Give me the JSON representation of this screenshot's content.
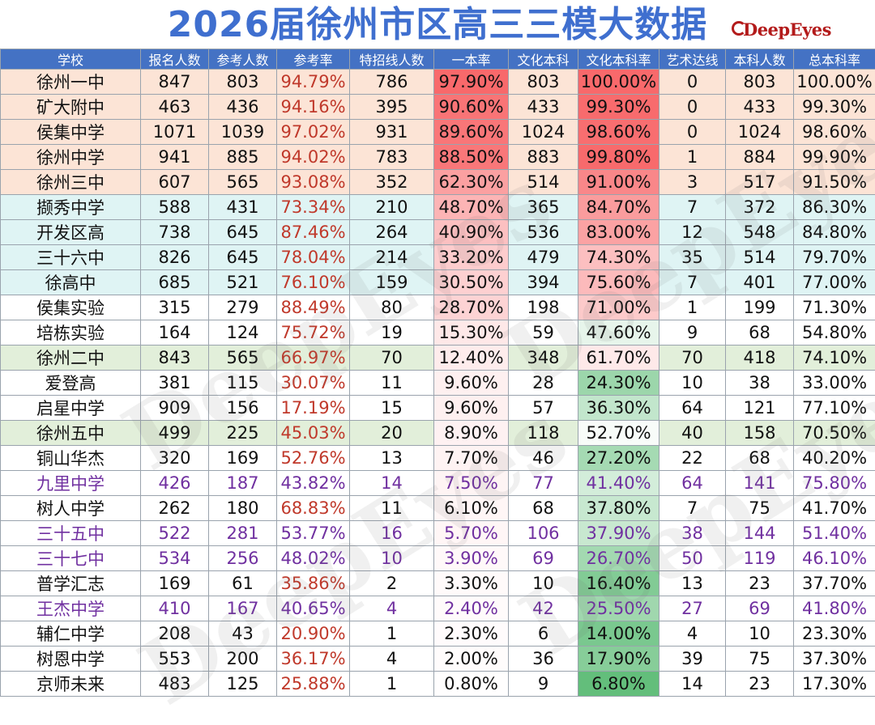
{
  "title": "2026届徐州市区高三三模大数据",
  "brand": "DeepEyes",
  "watermark": "DeepEyes",
  "colors": {
    "header_bg": "#4472c4",
    "group_1": "#fce4d6",
    "group_2": "#dff4f4",
    "group_3": "#e2efda",
    "rate_text": "#c0392b",
    "purple_text": "#7030a0",
    "red_scale": "#f8696b",
    "green_scale": "#63be7b"
  },
  "table": {
    "headers": [
      "学校",
      "报名人数",
      "参考人数",
      "参考率",
      "特招线人数",
      "一本率",
      "文化本科",
      "文化本科率",
      "艺术达线",
      "本科人数",
      "总本科率"
    ],
    "rows": [
      {
        "name": "徐州一中",
        "cells": [
          "847",
          "803",
          "94.79%",
          "786",
          "97.90%",
          "803",
          "100.00%",
          "0",
          "803",
          "100.00%"
        ],
        "group": 1,
        "purple": false
      },
      {
        "name": "矿大附中",
        "cells": [
          "463",
          "436",
          "94.16%",
          "395",
          "90.60%",
          "433",
          "99.30%",
          "0",
          "433",
          "99.30%"
        ],
        "group": 1,
        "purple": false
      },
      {
        "name": "侯集中学",
        "cells": [
          "1071",
          "1039",
          "97.02%",
          "931",
          "89.60%",
          "1024",
          "98.60%",
          "0",
          "1024",
          "98.60%"
        ],
        "group": 1,
        "purple": false
      },
      {
        "name": "徐州中学",
        "cells": [
          "941",
          "885",
          "94.02%",
          "783",
          "88.50%",
          "883",
          "99.80%",
          "1",
          "884",
          "99.90%"
        ],
        "group": 1,
        "purple": false
      },
      {
        "name": "徐州三中",
        "cells": [
          "607",
          "565",
          "93.08%",
          "352",
          "62.30%",
          "514",
          "91.00%",
          "3",
          "517",
          "91.50%"
        ],
        "group": 1,
        "purple": false
      },
      {
        "name": "撷秀中学",
        "cells": [
          "588",
          "431",
          "73.34%",
          "210",
          "48.70%",
          "365",
          "84.70%",
          "7",
          "372",
          "86.30%"
        ],
        "group": 2,
        "purple": false
      },
      {
        "name": "开发区高",
        "cells": [
          "738",
          "645",
          "87.46%",
          "264",
          "40.90%",
          "536",
          "83.00%",
          "12",
          "548",
          "84.80%"
        ],
        "group": 2,
        "purple": false
      },
      {
        "name": "三十六中",
        "cells": [
          "826",
          "645",
          "78.04%",
          "214",
          "33.20%",
          "479",
          "74.30%",
          "35",
          "514",
          "79.70%"
        ],
        "group": 2,
        "purple": false
      },
      {
        "name": "徐高中",
        "cells": [
          "685",
          "521",
          "76.10%",
          "159",
          "30.50%",
          "394",
          "75.60%",
          "7",
          "401",
          "77.00%"
        ],
        "group": 2,
        "purple": false
      },
      {
        "name": "侯集实验",
        "cells": [
          "315",
          "279",
          "88.49%",
          "80",
          "28.70%",
          "198",
          "71.00%",
          "1",
          "199",
          "71.30%"
        ],
        "group": 0,
        "purple": false
      },
      {
        "name": "培栋实验",
        "cells": [
          "164",
          "124",
          "75.72%",
          "19",
          "15.30%",
          "59",
          "47.60%",
          "9",
          "68",
          "54.80%"
        ],
        "group": 0,
        "purple": false
      },
      {
        "name": "徐州二中",
        "cells": [
          "843",
          "565",
          "66.97%",
          "70",
          "12.40%",
          "348",
          "61.70%",
          "70",
          "418",
          "74.10%"
        ],
        "group": 3,
        "purple": false
      },
      {
        "name": "爱登高",
        "cells": [
          "381",
          "115",
          "30.07%",
          "11",
          "9.60%",
          "28",
          "24.30%",
          "10",
          "38",
          "33.00%"
        ],
        "group": 0,
        "purple": false
      },
      {
        "name": "启星中学",
        "cells": [
          "909",
          "156",
          "17.19%",
          "15",
          "9.60%",
          "57",
          "36.30%",
          "64",
          "121",
          "77.10%"
        ],
        "group": 0,
        "purple": false
      },
      {
        "name": "徐州五中",
        "cells": [
          "499",
          "225",
          "45.03%",
          "20",
          "8.90%",
          "118",
          "52.70%",
          "40",
          "158",
          "70.50%"
        ],
        "group": 3,
        "purple": false
      },
      {
        "name": "铜山华杰",
        "cells": [
          "320",
          "169",
          "52.76%",
          "13",
          "7.70%",
          "46",
          "27.20%",
          "22",
          "68",
          "40.20%"
        ],
        "group": 0,
        "purple": false
      },
      {
        "name": "九里中学",
        "cells": [
          "426",
          "187",
          "43.82%",
          "14",
          "7.50%",
          "77",
          "41.40%",
          "64",
          "141",
          "75.80%"
        ],
        "group": 0,
        "purple": true
      },
      {
        "name": "树人中学",
        "cells": [
          "262",
          "180",
          "68.83%",
          "11",
          "6.10%",
          "68",
          "37.80%",
          "7",
          "75",
          "41.70%"
        ],
        "group": 0,
        "purple": false
      },
      {
        "name": "三十五中",
        "cells": [
          "522",
          "281",
          "53.77%",
          "16",
          "5.70%",
          "106",
          "37.90%",
          "38",
          "144",
          "51.40%"
        ],
        "group": 0,
        "purple": true
      },
      {
        "name": "三十七中",
        "cells": [
          "534",
          "256",
          "48.02%",
          "10",
          "3.90%",
          "69",
          "26.70%",
          "50",
          "119",
          "46.10%"
        ],
        "group": 0,
        "purple": true
      },
      {
        "name": "普学汇志",
        "cells": [
          "169",
          "61",
          "35.86%",
          "2",
          "3.30%",
          "10",
          "16.40%",
          "13",
          "23",
          "37.70%"
        ],
        "group": 0,
        "purple": false
      },
      {
        "name": "王杰中学",
        "cells": [
          "410",
          "167",
          "40.65%",
          "4",
          "2.40%",
          "42",
          "25.50%",
          "27",
          "69",
          "41.80%"
        ],
        "group": 0,
        "purple": true
      },
      {
        "name": "辅仁中学",
        "cells": [
          "208",
          "43",
          "20.90%",
          "1",
          "2.30%",
          "6",
          "14.00%",
          "4",
          "10",
          "23.30%"
        ],
        "group": 0,
        "purple": false
      },
      {
        "name": "树恩中学",
        "cells": [
          "553",
          "200",
          "36.17%",
          "4",
          "2.00%",
          "36",
          "17.90%",
          "39",
          "75",
          "37.30%"
        ],
        "group": 0,
        "purple": false
      },
      {
        "name": "京师未来",
        "cells": [
          "483",
          "125",
          "25.88%",
          "1",
          "0.80%",
          "9",
          "6.80%",
          "14",
          "23",
          "17.30%"
        ],
        "group": 0,
        "purple": false
      }
    ]
  }
}
